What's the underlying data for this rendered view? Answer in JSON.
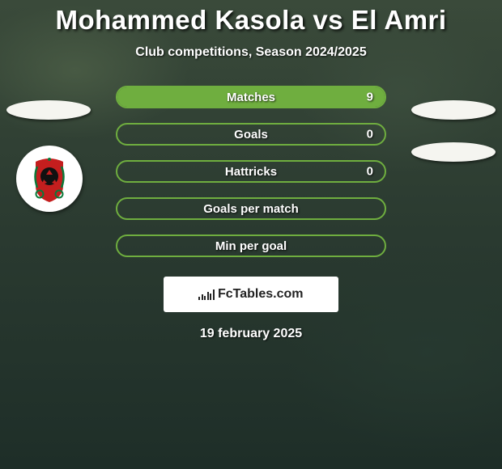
{
  "title": "Mohammed Kasola vs El Amri",
  "subtitle": "Club competitions, Season 2024/2025",
  "accent_color": "#6fae3f",
  "pill_border_color": "#6fae3f",
  "pill_text_color": "#ffffff",
  "background_colors": [
    "#3a4a3a",
    "#2a3a30",
    "#1e2e28"
  ],
  "stats": [
    {
      "label": "Matches",
      "value": "9",
      "fill_pct": 100,
      "show_value": true
    },
    {
      "label": "Goals",
      "value": "0",
      "fill_pct": 0,
      "show_value": true
    },
    {
      "label": "Hattricks",
      "value": "0",
      "fill_pct": 0,
      "show_value": true
    },
    {
      "label": "Goals per match",
      "value": "",
      "fill_pct": 0,
      "show_value": false
    },
    {
      "label": "Min per goal",
      "value": "",
      "fill_pct": 0,
      "show_value": false
    }
  ],
  "watermark": "FcTables.com",
  "date": "19 february 2025",
  "club_badge": {
    "bg": "#ffffff",
    "ring": "#0a7a3a",
    "center": "#c41e1e",
    "black": "#111111"
  }
}
